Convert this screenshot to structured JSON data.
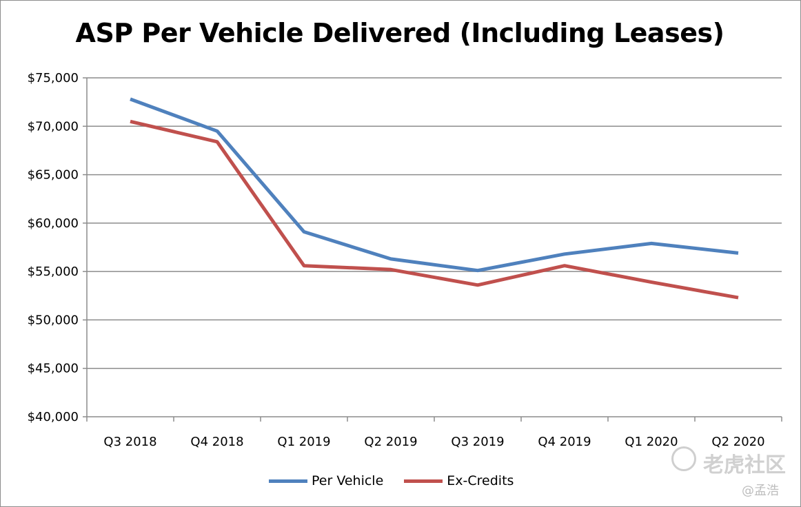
{
  "chart_data": {
    "type": "line",
    "title": "ASP Per Vehicle Delivered (Including Leases)",
    "xlabel": "",
    "ylabel": "",
    "categories": [
      "Q3 2018",
      "Q4 2018",
      "Q1 2019",
      "Q2 2019",
      "Q3 2019",
      "Q4 2019",
      "Q1 2020",
      "Q2 2020"
    ],
    "ylim": [
      40000,
      75000
    ],
    "yticks": [
      40000,
      45000,
      50000,
      55000,
      60000,
      65000,
      70000,
      75000
    ],
    "ytick_labels": [
      "$40,000",
      "$45,000",
      "$50,000",
      "$55,000",
      "$60,000",
      "$65,000",
      "$70,000",
      "$75,000"
    ],
    "grid": true,
    "legend_position": "bottom",
    "series": [
      {
        "name": "Per Vehicle",
        "color": "#4f81bd",
        "values": [
          72800,
          69500,
          59100,
          56300,
          55100,
          56800,
          57900,
          56900
        ]
      },
      {
        "name": "Ex-Credits",
        "color": "#c0504d",
        "values": [
          70500,
          68400,
          55600,
          55200,
          53600,
          55600,
          53900,
          52300
        ]
      }
    ]
  },
  "watermark": {
    "brand": "老虎社区",
    "user": "@孟浩"
  }
}
